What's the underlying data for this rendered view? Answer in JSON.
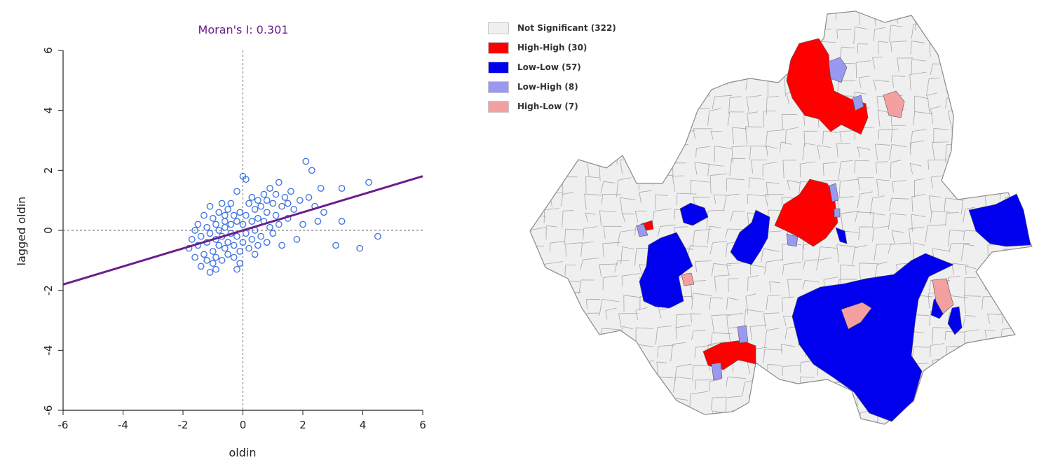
{
  "colors": {
    "purple": "#6b1e8c",
    "point": "#3b6fe0",
    "axis": "#222222",
    "not_significant": "#efefef",
    "high_high": "#ff0000",
    "low_low": "#0000ee",
    "low_high": "#9999f2",
    "high_low": "#f5a0a0",
    "boundary": "#8a8a8a"
  },
  "chart_data": [
    {
      "type": "scatter",
      "title": "Moran's I: 0.301",
      "xlabel": "oldin",
      "ylabel": "lagged oldin",
      "xlim": [
        -6,
        6
      ],
      "ylim": [
        -6,
        6
      ],
      "xticks": [
        "-6",
        "-4",
        "-2",
        "0",
        "2",
        "4",
        "6"
      ],
      "yticks": [
        "-6",
        "-4",
        "-2",
        "0",
        "2",
        "4",
        "6"
      ],
      "regression": {
        "slope": 0.301,
        "intercept": 0.0
      },
      "reference_lines": {
        "x": 0,
        "y": 0
      },
      "grid": false,
      "points": [
        [
          -1.8,
          -0.6
        ],
        [
          -1.7,
          -0.3
        ],
        [
          -1.6,
          -0.9
        ],
        [
          -1.5,
          -0.5
        ],
        [
          -1.5,
          0.2
        ],
        [
          -1.4,
          -1.2
        ],
        [
          -1.4,
          -0.2
        ],
        [
          -1.3,
          0.5
        ],
        [
          -1.3,
          -0.8
        ],
        [
          -1.2,
          0.1
        ],
        [
          -1.2,
          -1.0
        ],
        [
          -1.2,
          -0.4
        ],
        [
          -1.1,
          0.8
        ],
        [
          -1.1,
          -1.4
        ],
        [
          -1.1,
          -0.1
        ],
        [
          -1.0,
          0.4
        ],
        [
          -1.0,
          -0.7
        ],
        [
          -1.0,
          -1.1
        ],
        [
          -0.9,
          0.2
        ],
        [
          -0.9,
          -0.3
        ],
        [
          -0.9,
          -0.9
        ],
        [
          -0.8,
          0.6
        ],
        [
          -0.8,
          0.0
        ],
        [
          -0.8,
          -0.5
        ],
        [
          -0.7,
          0.9
        ],
        [
          -0.7,
          -0.2
        ],
        [
          -0.7,
          -1.0
        ],
        [
          -0.6,
          0.3
        ],
        [
          -0.6,
          -0.6
        ],
        [
          -0.6,
          0.1
        ],
        [
          -0.5,
          0.7
        ],
        [
          -0.5,
          -0.4
        ],
        [
          -0.5,
          -0.8
        ],
        [
          -0.4,
          0.9
        ],
        [
          -0.4,
          0.2
        ],
        [
          -0.4,
          -0.1
        ],
        [
          -0.3,
          0.5
        ],
        [
          -0.3,
          -0.5
        ],
        [
          -0.3,
          -0.9
        ],
        [
          -0.2,
          0.3
        ],
        [
          -0.2,
          1.3
        ],
        [
          -0.2,
          -0.2
        ],
        [
          -0.1,
          0.6
        ],
        [
          -0.1,
          -0.7
        ],
        [
          -0.1,
          -1.1
        ],
        [
          0.0,
          1.8
        ],
        [
          0.0,
          0.2
        ],
        [
          0.0,
          -0.4
        ],
        [
          0.1,
          1.7
        ],
        [
          0.1,
          0.5
        ],
        [
          0.1,
          -0.1
        ],
        [
          0.2,
          0.9
        ],
        [
          0.2,
          -0.6
        ],
        [
          0.3,
          0.3
        ],
        [
          0.3,
          1.1
        ],
        [
          0.3,
          -0.3
        ],
        [
          0.4,
          0.7
        ],
        [
          0.4,
          0.0
        ],
        [
          0.5,
          1.0
        ],
        [
          0.5,
          -0.5
        ],
        [
          0.5,
          0.4
        ],
        [
          0.6,
          0.8
        ],
        [
          0.6,
          -0.2
        ],
        [
          0.7,
          1.2
        ],
        [
          0.7,
          0.3
        ],
        [
          0.8,
          0.6
        ],
        [
          0.8,
          -0.4
        ],
        [
          0.9,
          1.4
        ],
        [
          0.9,
          0.1
        ],
        [
          1.0,
          0.9
        ],
        [
          1.0,
          -0.1
        ],
        [
          1.1,
          0.5
        ],
        [
          1.2,
          1.6
        ],
        [
          1.2,
          0.2
        ],
        [
          1.3,
          0.8
        ],
        [
          1.3,
          -0.5
        ],
        [
          1.4,
          1.1
        ],
        [
          1.5,
          0.4
        ],
        [
          1.6,
          1.3
        ],
        [
          1.7,
          0.7
        ],
        [
          1.8,
          -0.3
        ],
        [
          1.9,
          1.0
        ],
        [
          2.0,
          0.2
        ],
        [
          2.1,
          2.3
        ],
        [
          2.2,
          1.1
        ],
        [
          2.3,
          2.0
        ],
        [
          2.4,
          0.8
        ],
        [
          2.5,
          0.3
        ],
        [
          2.6,
          1.4
        ],
        [
          2.7,
          0.6
        ],
        [
          3.1,
          -0.5
        ],
        [
          3.3,
          1.4
        ],
        [
          3.3,
          0.3
        ],
        [
          3.9,
          -0.6
        ],
        [
          4.2,
          1.6
        ],
        [
          4.5,
          -0.2
        ],
        [
          -0.9,
          -1.3
        ],
        [
          -1.6,
          0.0
        ],
        [
          -0.2,
          -1.3
        ],
        [
          0.8,
          1.0
        ],
        [
          1.1,
          1.2
        ],
        [
          -0.6,
          0.5
        ],
        [
          0.4,
          -0.8
        ],
        [
          1.5,
          0.9
        ]
      ]
    },
    {
      "type": "map",
      "legend": [
        {
          "label": "Not Significant (322)",
          "color": "#efefef"
        },
        {
          "label": "High-High (30)",
          "color": "#ff0000"
        },
        {
          "label": "Low-Low (57)",
          "color": "#0000ee"
        },
        {
          "label": "Low-High (8)",
          "color": "#9999f2"
        },
        {
          "label": "High-Low (7)",
          "color": "#f5a0a0"
        }
      ]
    }
  ]
}
